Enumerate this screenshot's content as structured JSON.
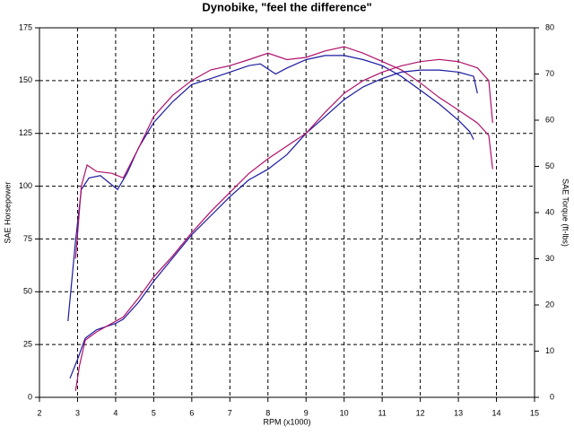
{
  "chart_data": {
    "type": "line",
    "title": "Dynobike, \"feel the difference\"",
    "xlabel": "RPM (x1000)",
    "ylabel": "SAE Horsepower",
    "y2label": "SAE Torque (ft-lbs)",
    "xlim": [
      2,
      15
    ],
    "xticks": [
      2,
      3,
      4,
      5,
      6,
      7,
      8,
      9,
      10,
      11,
      12,
      13,
      14,
      15
    ],
    "ylim": [
      0,
      175
    ],
    "yticks": [
      0,
      25,
      50,
      75,
      100,
      125,
      150,
      175
    ],
    "y2lim": [
      0,
      80
    ],
    "y2ticks": [
      0,
      10,
      20,
      30,
      40,
      50,
      60,
      70,
      80
    ],
    "grid": true,
    "series": [
      {
        "color": "#1a1aa0",
        "axis": "y2",
        "x": [
          2.75,
          2.95,
          3.1,
          3.3,
          3.6,
          3.9,
          4.05,
          4.3,
          4.6,
          5,
          5.5,
          6,
          6.5,
          7,
          7.5,
          7.8,
          8.2,
          8.5,
          9,
          9.5,
          10,
          10.5,
          11,
          11.5,
          12,
          12.5,
          13,
          13.3,
          13.4
        ],
        "values": [
          16.5,
          34,
          45,
          47.5,
          48,
          46,
          45,
          48.5,
          54,
          59.5,
          64,
          67.7,
          69,
          70.4,
          71.8,
          72.2,
          70,
          71.3,
          73.1,
          74,
          74,
          73.1,
          71.8,
          69.5,
          66.5,
          63.5,
          60,
          57.5,
          55.8
        ]
      },
      {
        "color": "#b0106a",
        "axis": "y2",
        "x": [
          2.95,
          3.1,
          3.25,
          3.5,
          3.9,
          4.2,
          4.6,
          5,
          5.5,
          6,
          6.5,
          7,
          7.5,
          8,
          8.5,
          9,
          9.5,
          10,
          10.5,
          11,
          11.5,
          12,
          12.5,
          13,
          13.5,
          13.8,
          13.9
        ],
        "values": [
          30,
          45.7,
          50.3,
          48.9,
          48.5,
          47.5,
          53.9,
          60.8,
          65.4,
          68.6,
          70.9,
          71.8,
          73.1,
          74.5,
          73.1,
          73.6,
          75,
          75.9,
          74.5,
          72.7,
          70.9,
          68.1,
          64.9,
          62.2,
          59.4,
          56.7,
          49.4
        ]
      },
      {
        "color": "#1a1aa0",
        "x": [
          2.8,
          3,
          3.2,
          3.5,
          4,
          4.2,
          4.6,
          5,
          5.5,
          6,
          6.5,
          7,
          7.5,
          8,
          8.5,
          9,
          9.5,
          10,
          10.5,
          11,
          11.5,
          12,
          12.5,
          13,
          13.4,
          13.5
        ],
        "values": [
          9,
          18,
          28,
          32,
          35,
          37,
          45,
          55,
          66,
          77,
          86,
          95,
          103,
          108,
          115,
          125,
          133,
          141,
          147,
          151,
          154,
          155,
          155,
          154,
          152,
          144
        ]
      },
      {
        "color": "#b0106a",
        "x": [
          2.95,
          3.05,
          3.2,
          3.5,
          4,
          4.2,
          4.6,
          5,
          5.5,
          6,
          6.5,
          7,
          7.5,
          8,
          8.5,
          9,
          9.5,
          10,
          10.5,
          11,
          11.5,
          12,
          12.5,
          13,
          13.5,
          13.8,
          13.9
        ],
        "values": [
          3,
          15,
          27,
          31,
          36,
          38,
          47,
          57,
          67,
          78,
          88,
          97,
          106,
          113,
          119,
          125,
          135,
          144,
          150,
          154,
          157,
          159,
          160,
          159,
          156,
          150,
          130
        ]
      }
    ]
  }
}
